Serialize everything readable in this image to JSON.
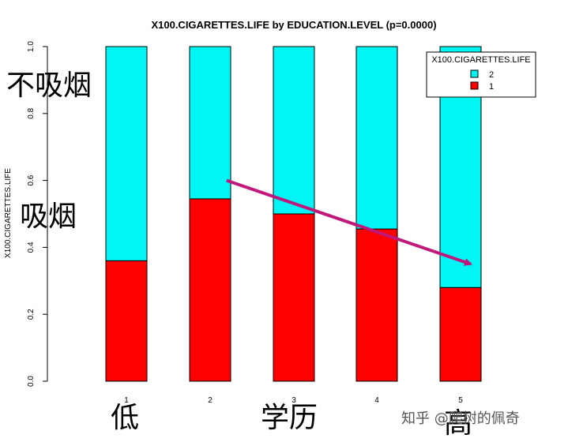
{
  "chart_data": {
    "type": "bar",
    "stacked": true,
    "title": "X100.CIGARETTES.LIFE by EDUCATION.LEVEL (p=0.0000)",
    "xlabel": "",
    "ylabel": "X100.CIGARETTES.LIFE",
    "categories": [
      "1",
      "2",
      "3",
      "4",
      "5"
    ],
    "series": [
      {
        "name": "1",
        "color": "#ff0000",
        "values": [
          0.36,
          0.545,
          0.5,
          0.455,
          0.28
        ]
      },
      {
        "name": "2",
        "color": "#00f5f5",
        "values": [
          0.64,
          0.455,
          0.5,
          0.545,
          0.72
        ]
      }
    ],
    "ylim": [
      0,
      1
    ],
    "yticks": [
      "0.0",
      "0.2",
      "0.4",
      "0.6",
      "0.8",
      "1.0"
    ],
    "grid": false,
    "legend": {
      "title": "X100.CIGARETTES.LIFE",
      "placement": "top-right",
      "order": [
        "2",
        "1"
      ]
    },
    "annotations": {
      "non_smoking": "不吸烟",
      "smoking": "吸烟",
      "low": "低",
      "education": "学历",
      "high": "高",
      "watermark": "知乎 @爬树的佩奇",
      "trend_arrow": {
        "from": {
          "category": "2",
          "value": 0.6
        },
        "to": {
          "category": "5",
          "value": 0.35
        },
        "color": "#c0187a"
      }
    }
  }
}
